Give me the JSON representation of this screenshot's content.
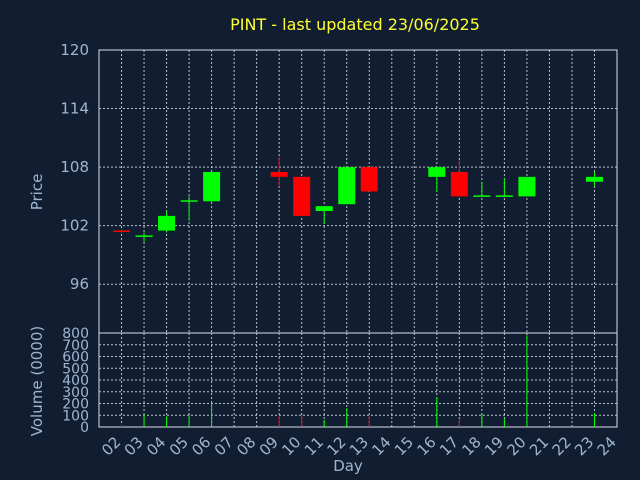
{
  "chart_data": {
    "type": "candlestick",
    "title": "PINT - last updated 23/06/2025",
    "xlabel": "Day",
    "price_panel": {
      "ylabel": "Price",
      "ylim": [
        120,
        91
      ],
      "yticks": [
        "120",
        "114",
        "108",
        "102",
        "96"
      ],
      "ytick_values": [
        120,
        114,
        108,
        102,
        96
      ]
    },
    "volume_panel": {
      "ylabel": "Volume (0000)",
      "ylim": [
        0,
        800
      ],
      "yticks": [
        "800",
        "700",
        "600",
        "500",
        "400",
        "300",
        "200",
        "100",
        "0"
      ],
      "ytick_values": [
        800,
        700,
        600,
        500,
        400,
        300,
        200,
        100,
        0
      ]
    },
    "x_days": [
      "02",
      "03",
      "04",
      "05",
      "06",
      "07",
      "08",
      "09",
      "10",
      "11",
      "12",
      "13",
      "14",
      "15",
      "16",
      "17",
      "18",
      "19",
      "20",
      "21",
      "22",
      "23",
      "24"
    ],
    "colors": {
      "up": "#00ff00",
      "down": "#ff0000",
      "background": "#111e31",
      "title": "#ffff33",
      "text": "#9fb6d2",
      "grid": "#d8dde6"
    },
    "candles": [
      {
        "day": "02",
        "open": 101.5,
        "close": 101.4,
        "high": 101.6,
        "low": 101.2,
        "volume": 20
      },
      {
        "day": "03",
        "open": 101.0,
        "close": 101.0,
        "high": 101.3,
        "low": 100.3,
        "volume": 110
      },
      {
        "day": "04",
        "open": 101.5,
        "close": 103.0,
        "high": 103.5,
        "low": 101.3,
        "volume": 90
      },
      {
        "day": "05",
        "open": 104.5,
        "close": 104.6,
        "high": 105.0,
        "low": 102.5,
        "volume": 100
      },
      {
        "day": "06",
        "open": 104.5,
        "close": 107.5,
        "high": 107.6,
        "low": 104.2,
        "volume": 200
      },
      {
        "day": "09",
        "open": 107.5,
        "close": 107.0,
        "high": 109.0,
        "low": 106.0,
        "volume": 90
      },
      {
        "day": "10",
        "open": 107.0,
        "close": 103.0,
        "high": 107.0,
        "low": 103.0,
        "volume": 100
      },
      {
        "day": "11",
        "open": 103.5,
        "close": 104.0,
        "high": 104.0,
        "low": 102.2,
        "volume": 60
      },
      {
        "day": "12",
        "open": 104.2,
        "close": 108.0,
        "high": 108.0,
        "low": 104.2,
        "volume": 160
      },
      {
        "day": "13",
        "open": 108.0,
        "close": 105.5,
        "high": 108.0,
        "low": 105.5,
        "volume": 90
      },
      {
        "day": "16",
        "open": 107.0,
        "close": 108.0,
        "high": 108.0,
        "low": 105.5,
        "volume": 250
      },
      {
        "day": "17",
        "open": 107.5,
        "close": 105.0,
        "high": 108.7,
        "low": 105.0,
        "volume": 70
      },
      {
        "day": "18",
        "open": 105.0,
        "close": 105.1,
        "high": 106.5,
        "low": 105.0,
        "volume": 110
      },
      {
        "day": "19",
        "open": 105.0,
        "close": 105.1,
        "high": 106.8,
        "low": 105.0,
        "volume": 70
      },
      {
        "day": "20",
        "open": 105.0,
        "close": 107.0,
        "high": 107.0,
        "low": 105.0,
        "volume": 780
      },
      {
        "day": "23",
        "open": 106.5,
        "close": 107.0,
        "high": 107.5,
        "low": 106.0,
        "volume": 120
      }
    ]
  }
}
